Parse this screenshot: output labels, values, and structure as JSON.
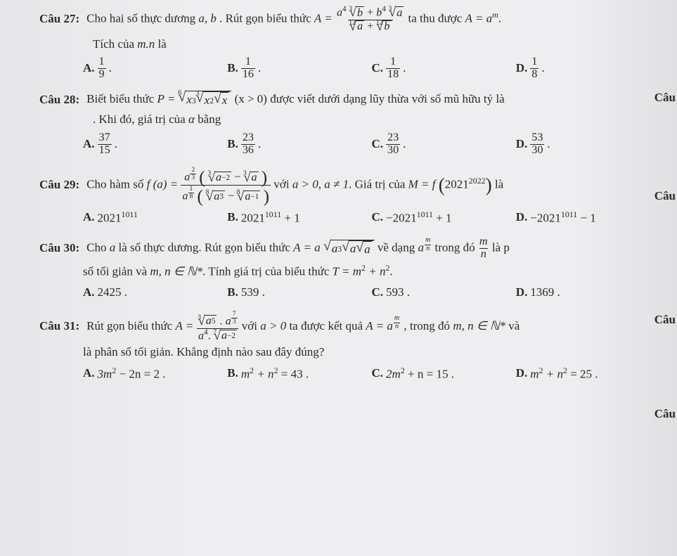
{
  "colors": {
    "text": "#2a2a2a",
    "rule": "#2a2a2a",
    "bg": "#e8e8ea"
  },
  "typography": {
    "family": "Times New Roman",
    "size_pt": 13
  },
  "edge_labels": {
    "e1": "Câu",
    "e2": "Câu",
    "e3": "Câu",
    "e4": "Câu"
  },
  "q27": {
    "label": "Câu 27:",
    "text_before": "Cho hai số thực dương ",
    "vars": "a, b",
    "text_mid": " . Rút gọn biểu thức ",
    "A_eq": "A =",
    "frac_num_1": "a",
    "frac_num_1_exp": "4",
    "root3_b": "b",
    "plus": " + ",
    "frac_num_2": "b",
    "frac_num_2_exp": "4",
    "root3_a": "a",
    "root12_a": "a",
    "root12_b": "b",
    "text_after": " ta thu được ",
    "result": "A = a",
    "result_exp": "m",
    "line2": "Tích của ",
    "line2_var": "m.n",
    "line2_end": " là",
    "cA": "A.",
    "cA_num": "1",
    "cA_den": "9",
    "dot": ".",
    "cB": "B.",
    "cB_num": "1",
    "cB_den": "16",
    "cC": "C.",
    "cC_num": "1",
    "cC_den": "18",
    "cD": "D.",
    "cD_num": "1",
    "cD_den": "8"
  },
  "q28": {
    "label": "Câu 28:",
    "text1": "Biết biểu thức ",
    "P_eq": "P =",
    "root6_idx": "6",
    "root3_idx": "3",
    "x3": "x",
    "x3_exp": "3",
    "x2": "x",
    "x2_exp": "2",
    "x": "x",
    "cond": " (x > 0) ",
    "text2": "được viết dưới dạng lũy thừa với số mũ hữu tỷ là",
    "line2": ". Khi đó, giá trị của ",
    "alpha": "α",
    "line2_end": " bằng",
    "cA": "A.",
    "cA_num": "37",
    "cA_den": "15",
    "dot": ".",
    "cB": "B.",
    "cB_num": "23",
    "cB_den": "36",
    "cC": "C.",
    "cC_num": "23",
    "cC_den": "30",
    "cD": "D.",
    "cD_num": "53",
    "cD_den": "30"
  },
  "q29": {
    "label": "Câu 29:",
    "text1": "Cho hàm số ",
    "f_eq": "f (a) =",
    "a": "a",
    "exp_2_3_num": "2",
    "exp_2_3_den": "3",
    "root3_idx": "3",
    "neg2": "−2",
    "minus": " − ",
    "exp_1_8_num": "1",
    "exp_1_8_den": "8",
    "root8_idx": "8",
    "exp3": "3",
    "neg1": "−1",
    "text2": " với ",
    "cond": "a > 0, a ≠ 1",
    "text3": ". Giá trị của ",
    "M_eq": "M = f",
    "base2021": "2021",
    "exp2022": "2022",
    "text4": " là",
    "cA": "A.",
    "cA_val": "2021",
    "cA_exp": "1011",
    "cB": "B.",
    "cB_val": "2021",
    "cB_exp": "1011",
    "cB_tail": " + 1",
    "cC": "C.",
    "cC_val": "−2021",
    "cC_exp": "1011",
    "cC_tail": " + 1",
    "cD": "D.",
    "cD_val": "−2021",
    "cD_exp": "1011",
    "cD_tail": " − 1"
  },
  "q30": {
    "label": "Câu 30:",
    "text1": "Cho ",
    "a": "a",
    "text2": " là số thực dương. Rút gọn biểu thức ",
    "A_eq": "A = a",
    "inner_a3": "a",
    "inner_a3_exp": "3",
    "text3": " về dạng ",
    "a_base": "a",
    "m": "m",
    "n": "n",
    "text4": " trong đó ",
    "text5": " là p",
    "line2a": "số tối giản và ",
    "mn_set": "m, n ∈ ℕ*",
    "line2b": ". Tính giá trị của biểu thức ",
    "T_eq": "T = m",
    "sq": "2",
    "plus": " + n",
    "dot": ".",
    "cA": "A.",
    "cA_val": "2425 .",
    "cB": "B.",
    "cB_val": "539 .",
    "cC": "C.",
    "cC_val": "593 .",
    "cD": "D.",
    "cD_val": "1369 ."
  },
  "q31": {
    "label": "Câu 31:",
    "text1": "Rút gọn biểu thức ",
    "A_eq": "A =",
    "root3_idx": "3",
    "a5": "a",
    "a5_exp": "5",
    "dotm": ".",
    "a": "a",
    "exp_7_3_num": "7",
    "exp_7_3_den": "3",
    "a4": "a",
    "a4_exp": "4",
    "root7_idx": "7",
    "neg2": "−2",
    "text2": " với ",
    "cond": "a > 0",
    "text3": " ta được kết quả ",
    "res": "A = a",
    "m": "m",
    "n": "n",
    "text4": " , trong đó ",
    "mn_set": "m, n ∈ ℕ*",
    "text5": " và",
    "line2": "là phân số tối giản. Khẳng định nào sau đây đúng?",
    "cA": "A.",
    "cA_val": "3m",
    "cA_s1": "2",
    "cA_mid": " − 2n = 2 .",
    "cB": "B.",
    "cB_val": "m",
    "cB_s1": "2",
    "cB_mid": " + n",
    "cB_s2": "2",
    "cB_end": " = 43 .",
    "cC": "C.",
    "cC_val": "2m",
    "cC_s1": "2",
    "cC_mid": " + n = 15 .",
    "cD": "D.",
    "cD_val": "m",
    "cD_s1": "2",
    "cD_mid": " + n",
    "cD_s2": "2",
    "cD_end": " = 25 ."
  }
}
